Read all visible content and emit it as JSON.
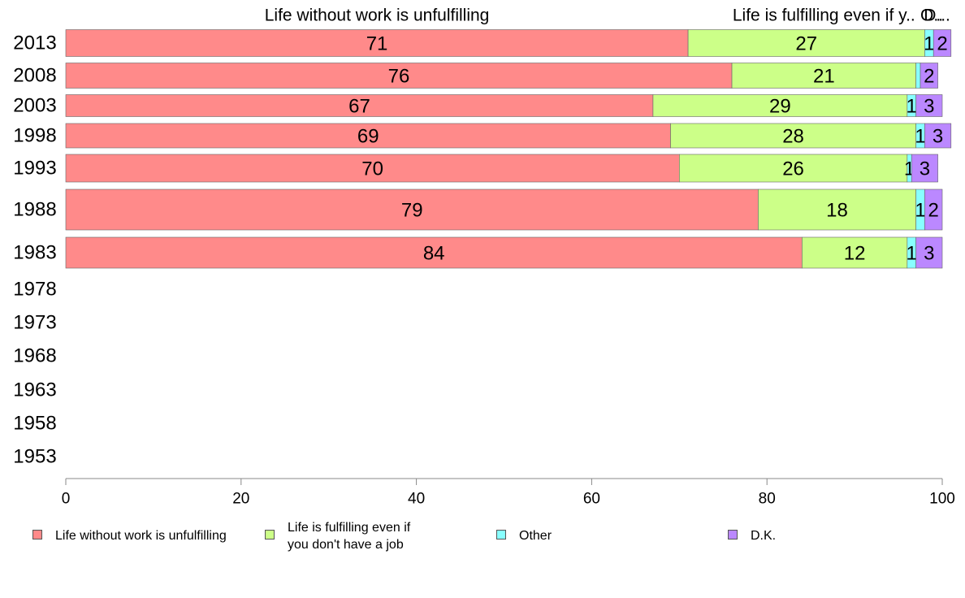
{
  "chart_data": {
    "type": "bar",
    "orientation": "horizontal",
    "stacked": true,
    "categories": [
      "2013",
      "2008",
      "2003",
      "1998",
      "1993",
      "1988",
      "1983",
      "1978",
      "1973",
      "1968",
      "1963",
      "1958",
      "1953"
    ],
    "series": [
      {
        "name": "Life without work is unfulfilling",
        "header_label": "Life without work is unfulfilling",
        "color": "#ff8a8a",
        "values": [
          71,
          76,
          67,
          69,
          70,
          79,
          84,
          null,
          null,
          null,
          null,
          null,
          null
        ]
      },
      {
        "name": "Life is fulfilling even if\nyou don't have a job",
        "header_label": "Life is fulfilling even if y..",
        "color": "#ccff88",
        "values": [
          27,
          21,
          29,
          28,
          26,
          18,
          12,
          null,
          null,
          null,
          null,
          null,
          null
        ]
      },
      {
        "name": "Other",
        "header_label": "O..",
        "color": "#88ffff",
        "values": [
          1,
          0.5,
          1,
          1,
          0.5,
          1,
          1,
          null,
          null,
          null,
          null,
          null,
          null
        ]
      },
      {
        "name": "D.K.",
        "header_label": "D...",
        "color": "#bb88ff",
        "values": [
          2,
          2,
          3,
          3,
          3,
          2,
          3,
          null,
          null,
          null,
          null,
          null,
          null
        ]
      }
    ],
    "segment_labels": [
      [
        "71",
        "27",
        "1",
        "2"
      ],
      [
        "76",
        "21",
        "",
        "2"
      ],
      [
        "67",
        "29",
        "1",
        "3"
      ],
      [
        "69",
        "28",
        "1",
        "3"
      ],
      [
        "70",
        "26",
        "1",
        "3"
      ],
      [
        "79",
        "18",
        "1",
        "2"
      ],
      [
        "84",
        "12",
        "1",
        "3"
      ],
      [],
      [],
      [],
      [],
      [],
      []
    ],
    "xlim": [
      0,
      100
    ],
    "xticks": [
      0,
      20,
      40,
      60,
      80,
      100
    ],
    "xlabel": "",
    "ylabel": "",
    "title": "",
    "grid": false,
    "legend_position": "bottom"
  }
}
